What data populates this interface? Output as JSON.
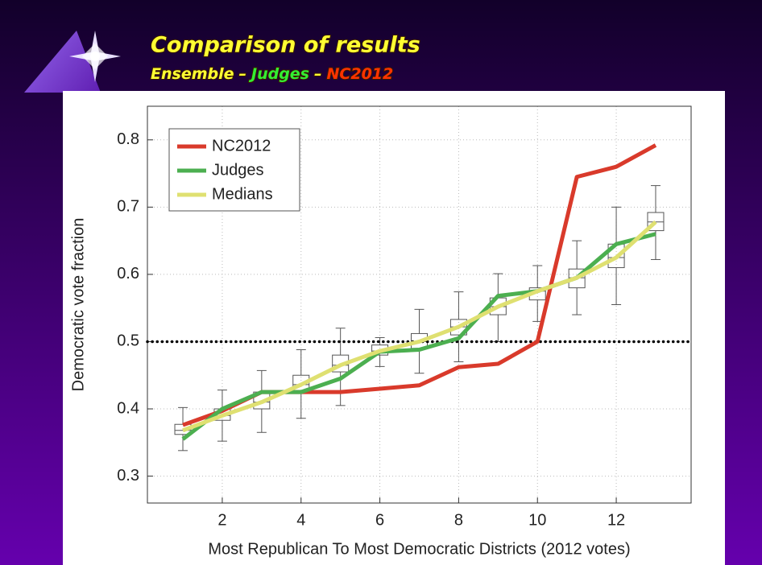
{
  "chart_data": {
    "type": "line",
    "title": "Comparison of results",
    "subtitle": [
      {
        "text": "Ensemble",
        "color": "#ffff33"
      },
      {
        "text": "–",
        "color": "#ffff33"
      },
      {
        "text": "Judges",
        "color": "#33ee33"
      },
      {
        "text": "–",
        "color": "#ffff33"
      },
      {
        "text": "NC2012",
        "color": "#ff3300"
      }
    ],
    "xlabel": "Most Republican To Most Democratic Districts (2012 votes)",
    "ylabel": "Democratic vote fraction",
    "x": [
      1,
      2,
      3,
      4,
      5,
      6,
      7,
      8,
      9,
      10,
      11,
      12,
      13
    ],
    "xlim": [
      0.1,
      13.9
    ],
    "ylim": [
      0.26,
      0.85
    ],
    "xticks": [
      2,
      4,
      6,
      8,
      10,
      12
    ],
    "yticks": [
      0.3,
      0.4,
      0.5,
      0.6,
      0.7,
      0.8
    ],
    "grid": true,
    "legend": "upper left",
    "hline": 0.5,
    "series": [
      {
        "name": "NC2012",
        "color": "#d93a2b",
        "values": [
          0.376,
          0.397,
          0.425,
          0.425,
          0.425,
          0.43,
          0.435,
          0.462,
          0.467,
          0.5,
          0.745,
          0.76,
          0.792
        ]
      },
      {
        "name": "Judges",
        "color": "#4caf50",
        "values": [
          0.355,
          0.4,
          0.425,
          0.425,
          0.445,
          0.485,
          0.488,
          0.505,
          0.568,
          0.575,
          0.595,
          0.645,
          0.66
        ]
      },
      {
        "name": "Medians",
        "color": "#dfe071",
        "values": [
          0.368,
          0.39,
          0.41,
          0.436,
          0.465,
          0.486,
          0.5,
          0.522,
          0.552,
          0.575,
          0.595,
          0.625,
          0.678
        ]
      }
    ],
    "box_stats": [
      [
        0.338,
        0.362,
        0.368,
        0.377,
        0.402
      ],
      [
        0.352,
        0.383,
        0.39,
        0.4,
        0.428
      ],
      [
        0.365,
        0.4,
        0.41,
        0.425,
        0.457
      ],
      [
        0.386,
        0.425,
        0.436,
        0.45,
        0.488
      ],
      [
        0.405,
        0.455,
        0.465,
        0.48,
        0.52
      ],
      [
        0.463,
        0.48,
        0.486,
        0.495,
        0.506
      ],
      [
        0.453,
        0.49,
        0.5,
        0.512,
        0.548
      ],
      [
        0.47,
        0.51,
        0.522,
        0.533,
        0.574
      ],
      [
        0.5,
        0.54,
        0.552,
        0.565,
        0.601
      ],
      [
        0.53,
        0.562,
        0.575,
        0.58,
        0.613
      ],
      [
        0.54,
        0.58,
        0.595,
        0.608,
        0.65
      ],
      [
        0.555,
        0.61,
        0.625,
        0.645,
        0.7
      ],
      [
        0.622,
        0.665,
        0.678,
        0.692,
        0.732
      ]
    ]
  }
}
